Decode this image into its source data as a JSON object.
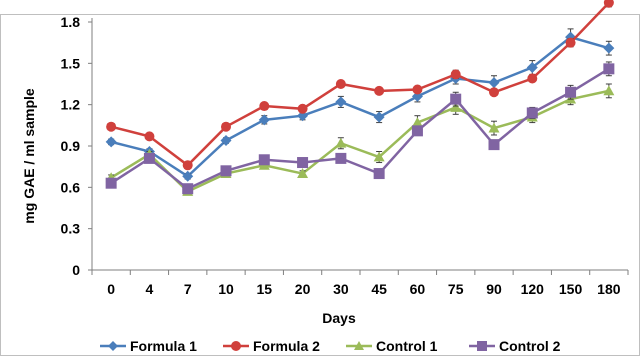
{
  "chart_data": {
    "type": "line",
    "title": "",
    "xlabel": "Days",
    "ylabel": "mg GAE / ml sample",
    "categories": [
      "0",
      "4",
      "7",
      "10",
      "15",
      "20",
      "30",
      "45",
      "60",
      "75",
      "90",
      "120",
      "150",
      "180"
    ],
    "ylim": [
      0,
      1.8
    ],
    "yticks": [
      "0",
      "0.3",
      "0.6",
      "0.9",
      "1.2",
      "1.5",
      "1.8"
    ],
    "grid": false,
    "legend": "bottom",
    "series": [
      {
        "name": "Formula 1",
        "color": "#4a7ebb",
        "marker": "diamond",
        "values": [
          0.93,
          0.86,
          0.68,
          0.94,
          1.09,
          1.12,
          1.22,
          1.11,
          1.26,
          1.39,
          1.36,
          1.47,
          1.69,
          1.61
        ],
        "errors": [
          0.02,
          0.02,
          0.02,
          0.02,
          0.03,
          0.03,
          0.04,
          0.04,
          0.04,
          0.04,
          0.05,
          0.05,
          0.06,
          0.05
        ]
      },
      {
        "name": "Formula 2",
        "color": "#d0403c",
        "marker": "circle",
        "values": [
          1.04,
          0.97,
          0.76,
          1.04,
          1.19,
          1.17,
          1.35,
          1.3,
          1.31,
          1.42,
          1.29,
          1.39,
          1.65,
          1.94
        ],
        "errors": [
          0.02,
          0.02,
          0.02,
          0.02,
          0.02,
          0.02,
          0.02,
          0.02,
          0.02,
          0.03,
          0.02,
          0.02,
          0.03,
          0.03
        ]
      },
      {
        "name": "Control 1",
        "color": "#9bbb59",
        "marker": "triangle",
        "values": [
          0.67,
          0.84,
          0.57,
          0.7,
          0.76,
          0.7,
          0.92,
          0.82,
          1.07,
          1.18,
          1.03,
          1.11,
          1.24,
          1.3
        ],
        "errors": [
          0.02,
          0.02,
          0.02,
          0.02,
          0.02,
          0.02,
          0.04,
          0.04,
          0.05,
          0.05,
          0.05,
          0.04,
          0.04,
          0.05
        ]
      },
      {
        "name": "Control 2",
        "color": "#8064a2",
        "marker": "square",
        "values": [
          0.63,
          0.81,
          0.59,
          0.72,
          0.8,
          0.78,
          0.81,
          0.7,
          1.01,
          1.24,
          0.91,
          1.14,
          1.29,
          1.46
        ],
        "errors": [
          0.02,
          0.02,
          0.02,
          0.02,
          0.02,
          0.02,
          0.02,
          0.02,
          0.03,
          0.05,
          0.03,
          0.04,
          0.05,
          0.05
        ]
      }
    ]
  }
}
